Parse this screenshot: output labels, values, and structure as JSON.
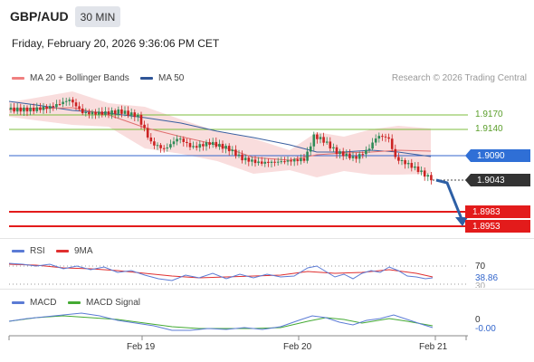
{
  "header": {
    "pair": "GBP/AUD",
    "timeframe": "30 MIN"
  },
  "datetime": "Friday, February 20, 2026 9:36:06 PM CET",
  "main_legend": [
    {
      "label": "MA 20 + Bollinger Bands",
      "color": "#f08080"
    },
    {
      "label": "MA 50",
      "color": "#2f5597"
    }
  ],
  "credit": "Research © 2026 Trading Central",
  "levels": {
    "resistance_2": "1.9170",
    "resistance_1": "1.9140",
    "pivot": "1.9090",
    "last_price": "1.9043",
    "support_1": "1.8983",
    "support_2": "1.8953"
  },
  "rsi_panel": {
    "legend": [
      {
        "label": "RSI",
        "color": "#5b7bd5"
      },
      {
        "label": "9MA",
        "color": "#e03030"
      }
    ],
    "level_70": "70",
    "value": "38.86",
    "level_30": "30"
  },
  "macd_panel": {
    "legend": [
      {
        "label": "MACD",
        "color": "#5b7bd5"
      },
      {
        "label": "MACD Signal",
        "color": "#44aa33"
      }
    ],
    "zero": "0",
    "value": "-0.00"
  },
  "x_axis": [
    "Feb 19",
    "Feb 20",
    "Feb 21"
  ],
  "colors": {
    "up_candle": "#2e8b57",
    "down_candle": "#cc2222",
    "pivot": "#3366cc",
    "support": "#e31b1b",
    "resistance": "#7cbd3c",
    "bollinger": "#f7c9c9"
  }
}
